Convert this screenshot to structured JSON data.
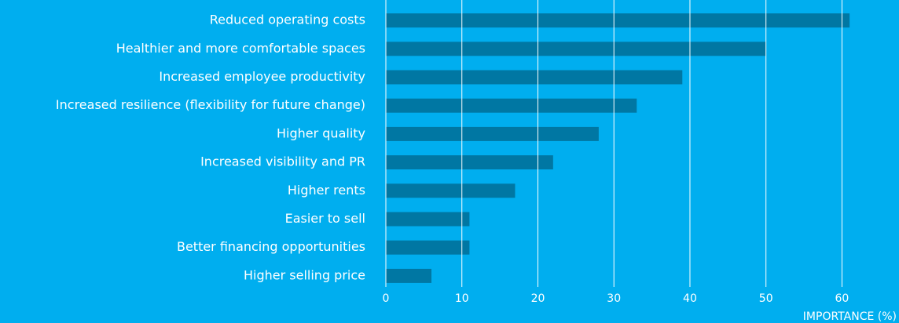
{
  "chart_data": {
    "type": "bar",
    "orientation": "horizontal",
    "categories": [
      "Reduced operating costs",
      "Healthier and more comfortable spaces",
      "Increased employee productivity",
      "Increased resilience (flexibility for future change)",
      "Higher quality",
      "Increased visibility and PR",
      "Higher rents",
      "Easier to sell",
      "Better financing opportunities",
      "Higher selling price"
    ],
    "values": [
      61,
      50,
      39,
      33,
      28,
      22,
      17,
      11,
      11,
      6
    ],
    "color": "#0077a3",
    "xlabel": "IMPORTANCE (%)",
    "xlim": [
      0,
      67.5
    ],
    "xticks": [
      0,
      10,
      20,
      30,
      40,
      50,
      60
    ],
    "grid": true
  }
}
